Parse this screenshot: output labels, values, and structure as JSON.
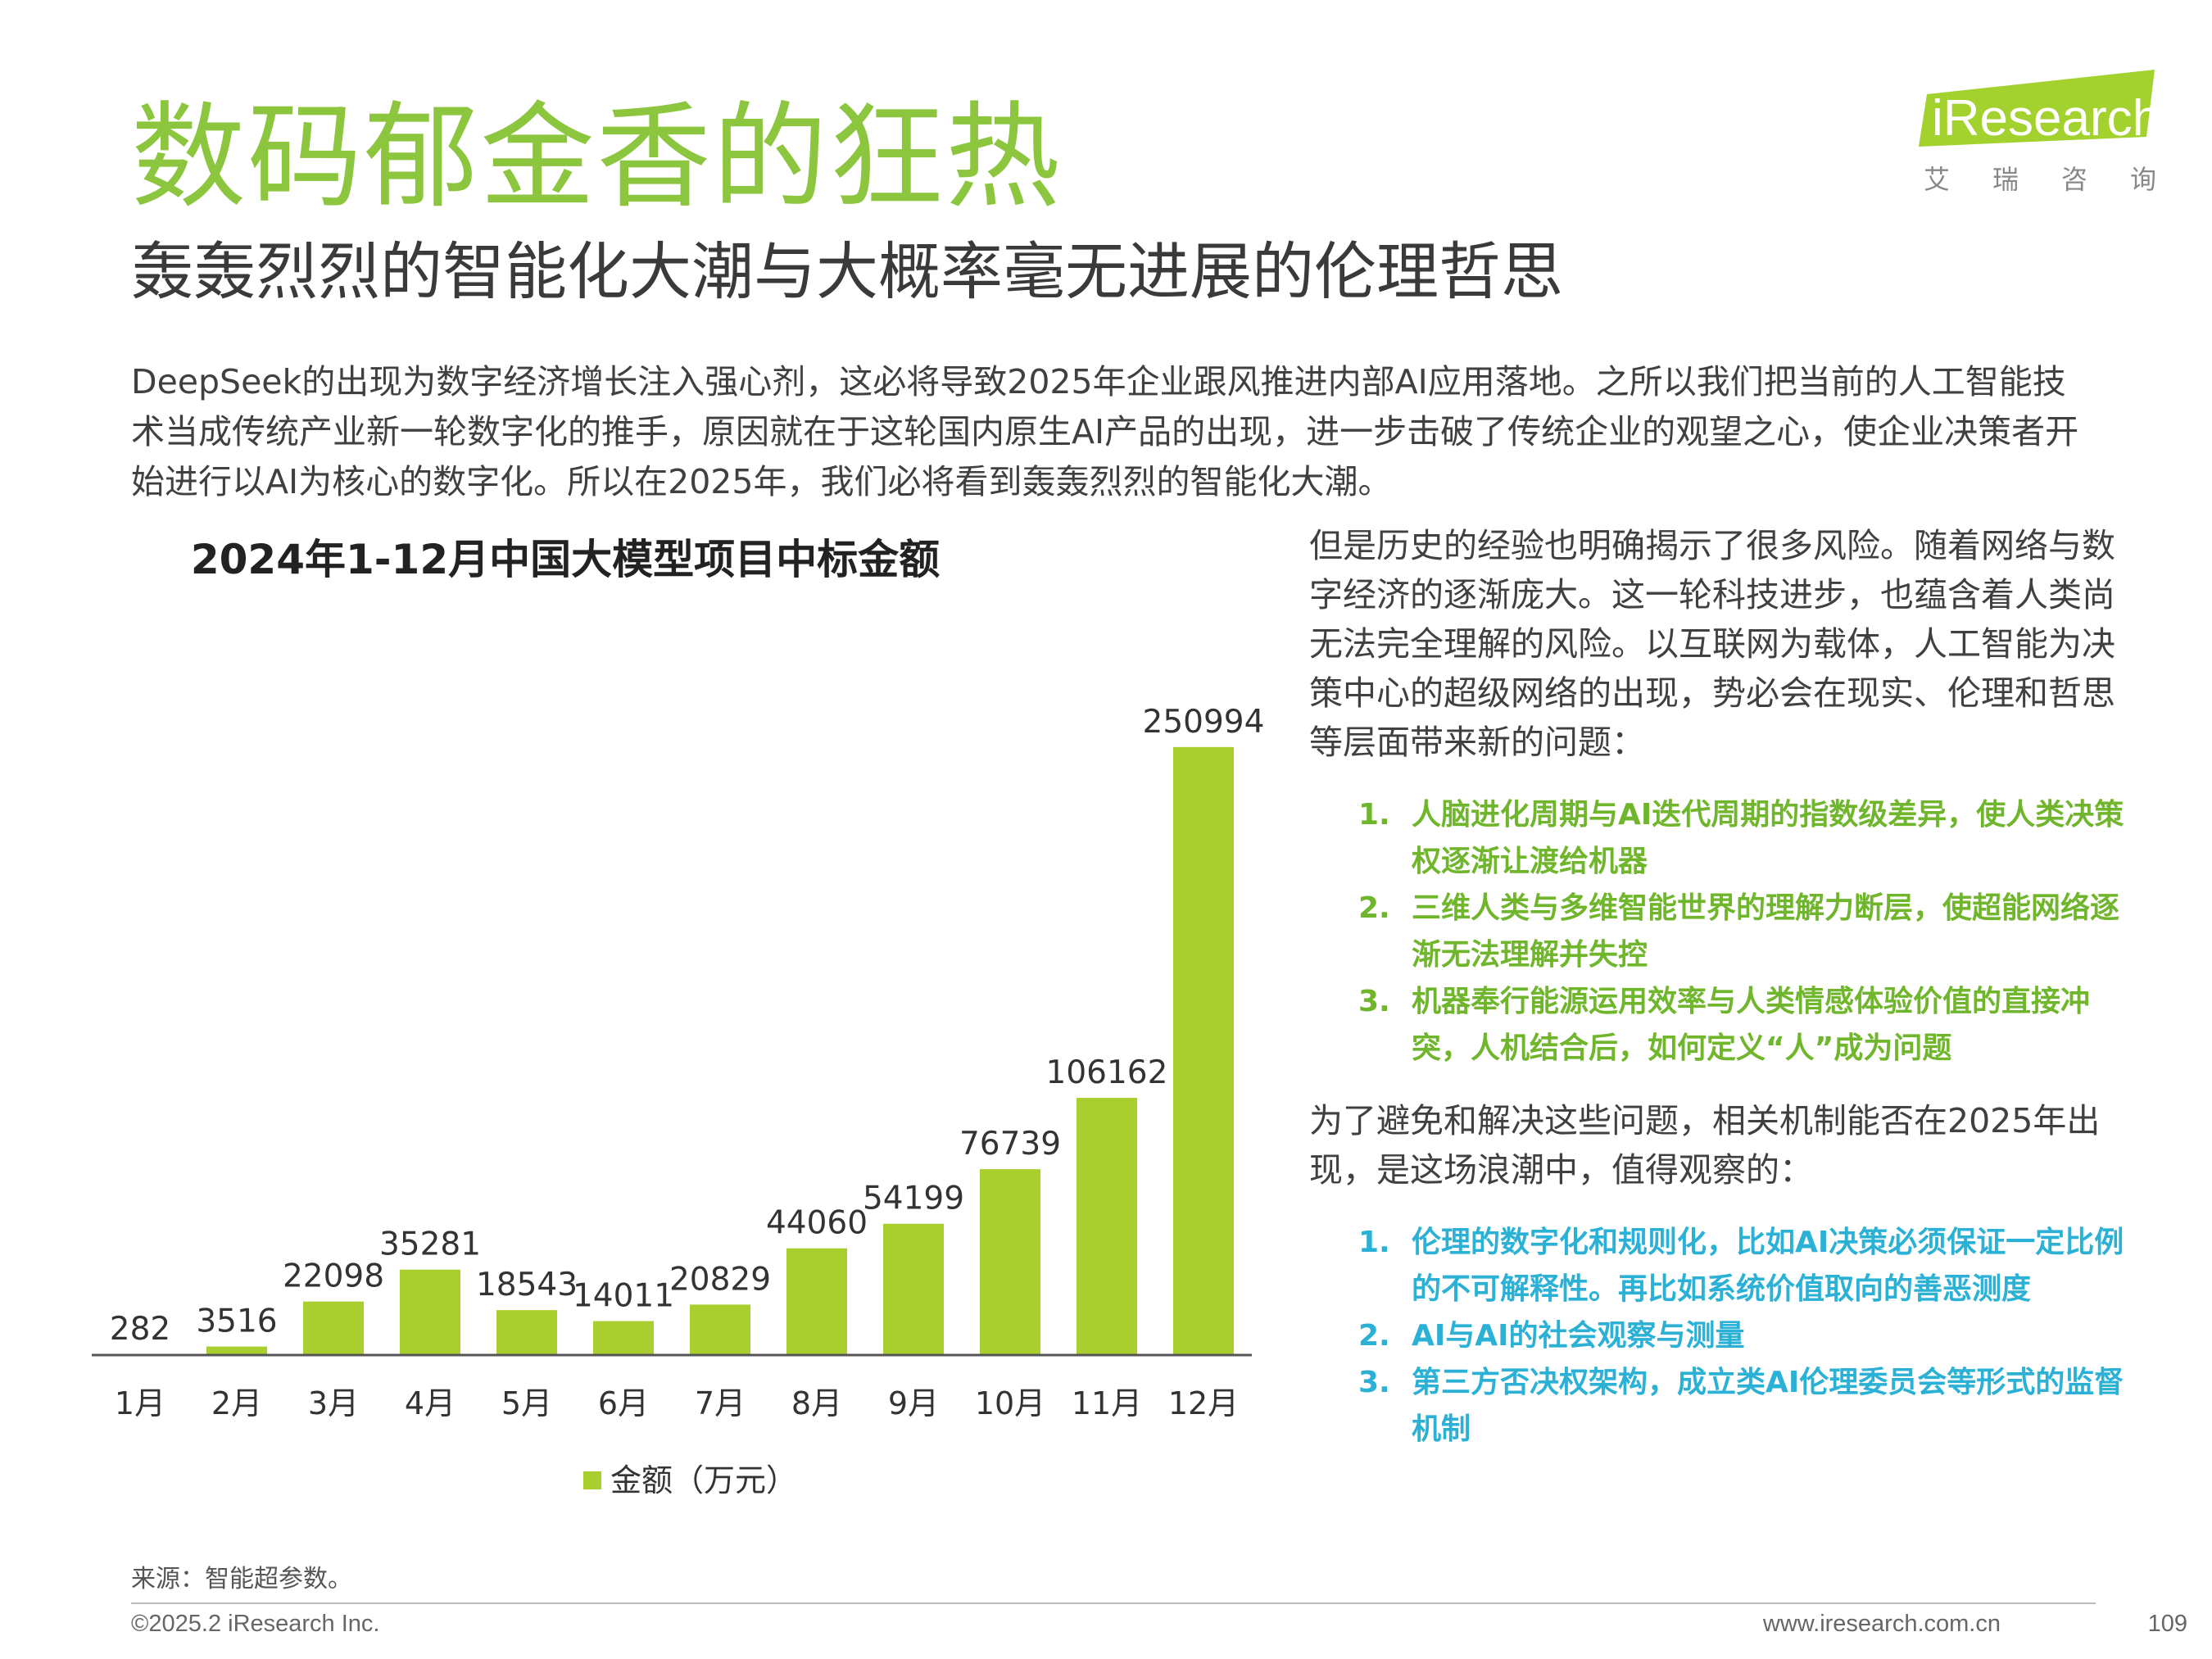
{
  "page": {
    "title": "数码郁金香的狂热",
    "subtitle": "轰轰烈烈的智能化大潮与大概率毫无进展的伦理哲思",
    "intro": "DeepSeek的出现为数字经济增长注入强心剂，这必将导致2025年企业跟风推进内部AI应用落地。之所以我们把当前的人工智能技术当成传统产业新一轮数字化的推手，原因就在于这轮国内原生AI产品的出现，进一步击破了传统企业的观望之心，使企业决策者开始进行以AI为核心的数字化。所以在2025年，我们必将看到轰轰烈烈的智能化大潮。",
    "right_paragraph_1": "但是历史的经验也明确揭示了很多风险。随着网络与数字经济的逐渐庞大。这一轮科技进步，也蕴含着人类尚无法完全理解的风险。以互联网为载体，人工智能为决策中心的超级网络的出现，势必会在现实、伦理和哲思等层面带来新的问题：",
    "risks": [
      {
        "num": "1.",
        "text": "人脑进化周期与AI迭代周期的指数级差异，使人类决策权逐渐让渡给机器"
      },
      {
        "num": "2.",
        "text": "三维人类与多维智能世界的理解力断层，使超能网络逐渐无法理解并失控"
      },
      {
        "num": "3.",
        "text": "机器奉行能源运用效率与人类情感体验价值的直接冲突，人机结合后，如何定义“人”成为问题"
      }
    ],
    "right_paragraph_2": "为了避免和解决这些问题，相关机制能否在2025年出现，是这场浪潮中，值得观察的：",
    "watch_items": [
      {
        "num": "1.",
        "text": "伦理的数字化和规则化，比如AI决策必须保证一定比例的不可解释性。再比如系统价值取向的善恶测度"
      },
      {
        "num": "2.",
        "text": "AI与AI的社会观察与测量"
      },
      {
        "num": "3.",
        "text": "第三方否决权架构，成立类AI伦理委员会等形式的监督机制"
      }
    ],
    "source": "来源：智能超参数。",
    "copyright": "©2025.2 iResearch Inc.",
    "website": "www.iresearch.com.cn",
    "page_number": "109"
  },
  "logo": {
    "wordmark": "iResearch",
    "chinese": [
      "艾",
      "瑞",
      "咨",
      "询"
    ],
    "colors": {
      "green": "#a3d12e",
      "text": "#ffffff",
      "chinese": "#888888"
    }
  },
  "chart_data": {
    "type": "bar",
    "title": "2024年1-12月中国大模型项目中标金额",
    "categories": [
      "1月",
      "2月",
      "3月",
      "4月",
      "5月",
      "6月",
      "7月",
      "8月",
      "9月",
      "10月",
      "11月",
      "12月"
    ],
    "series": [
      {
        "name": "金额（万元）",
        "values": [
          282,
          3516,
          22098,
          35281,
          18543,
          14011,
          20829,
          44060,
          54199,
          76739,
          106162,
          250994
        ]
      }
    ],
    "ylim": [
      0,
      255000
    ],
    "grid": false,
    "legend": "bottom-center",
    "colors": {
      "bar": "#a8cf2e",
      "axis": "#555555",
      "label": "#333333"
    }
  }
}
